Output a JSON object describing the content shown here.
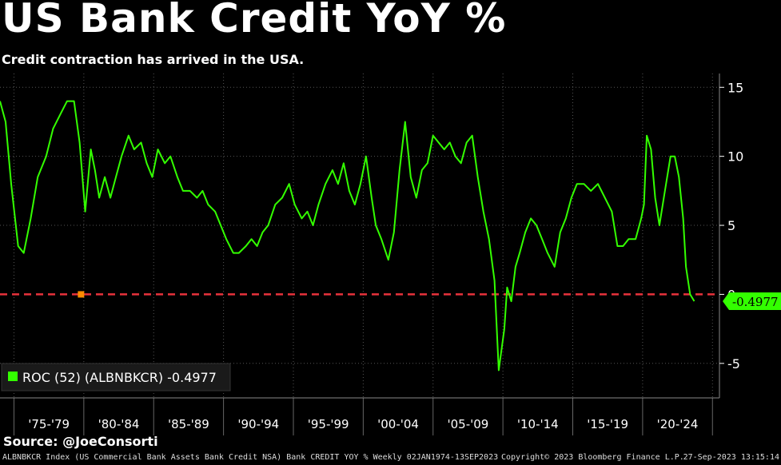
{
  "header": {
    "title": "US Bank Credit YoY %",
    "subtitle": "Credit contraction has arrived in the USA."
  },
  "footer": {
    "source": "Source: @JoeConsorti",
    "description": "ALBNBKCR Index (US Commercial Bank Assets Bank Credit NSA) Bank CREDIT YOY % Weekly 02JAN1974-13SEP2023",
    "copyright": "Copyright© 2023 Bloomberg Finance L.P.",
    "timestamp": "27-Sep-2023 13:15:14"
  },
  "colors": {
    "background": "#000000",
    "line": "#33ff00",
    "zero_line": "#e8323c",
    "grid": "#555555",
    "last_label_bg": "#33ff00"
  },
  "chart_data": {
    "type": "line",
    "title": "US Bank Credit YoY %",
    "subtitle": "Credit contraction has arrived in the USA.",
    "y_axis_position": "right",
    "ylim": [
      -7.5,
      16
    ],
    "yticks": [
      15,
      10,
      5,
      0,
      -5
    ],
    "xlim": [
      1974.0,
      2025.5
    ],
    "x_periods": [
      "'75-'79",
      "'80-'84",
      "'85-'89",
      "'90-'94",
      "'95-'99",
      "'00-'04",
      "'05-'09",
      "'10-'14",
      "'15-'19",
      "'20-'24"
    ],
    "grid": true,
    "legend": {
      "position": "bottom-left",
      "label": "ROC (52) (ALBNBKCR) -0.4977"
    },
    "last_value": -0.4977,
    "last_value_label": "-0.4977",
    "reference_line": 0,
    "series": [
      {
        "name": "ROC (52) (ALBNBKCR)",
        "x": [
          1974.0,
          1974.4,
          1974.8,
          1975.3,
          1975.7,
          1976.2,
          1976.7,
          1977.3,
          1977.8,
          1978.3,
          1978.8,
          1979.3,
          1979.7,
          1980.1,
          1980.5,
          1980.8,
          1981.1,
          1981.5,
          1981.9,
          1982.3,
          1982.7,
          1983.2,
          1983.6,
          1984.1,
          1984.5,
          1984.9,
          1985.3,
          1985.8,
          1986.2,
          1986.7,
          1987.1,
          1987.6,
          1988.1,
          1988.5,
          1988.9,
          1989.4,
          1989.8,
          1990.2,
          1990.7,
          1991.1,
          1991.6,
          1992.0,
          1992.4,
          1992.8,
          1993.2,
          1993.7,
          1994.2,
          1994.7,
          1995.1,
          1995.6,
          1996.0,
          1996.4,
          1996.8,
          1997.3,
          1997.8,
          1998.2,
          1998.6,
          1999.0,
          1999.4,
          1999.8,
          2000.2,
          2000.6,
          2000.9,
          2001.3,
          2001.8,
          2002.2,
          2002.6,
          2003.0,
          2003.4,
          2003.8,
          2004.2,
          2004.6,
          2005.0,
          2005.4,
          2005.8,
          2006.2,
          2006.6,
          2007.0,
          2007.4,
          2007.8,
          2008.2,
          2008.6,
          2009.0,
          2009.4,
          2009.7,
          2009.9,
          2010.1,
          2010.3,
          2010.6,
          2010.9,
          2011.2,
          2011.6,
          2012.0,
          2012.4,
          2012.8,
          2013.2,
          2013.7,
          2014.1,
          2014.5,
          2014.9,
          2015.3,
          2015.8,
          2016.3,
          2016.8,
          2017.3,
          2017.8,
          2018.2,
          2018.6,
          2019.0,
          2019.5,
          2019.9,
          2020.1,
          2020.3,
          2020.6,
          2020.9,
          2021.2,
          2021.6,
          2022.0,
          2022.3,
          2022.6,
          2022.9,
          2023.1,
          2023.4,
          2023.7
        ],
        "y": [
          14.0,
          12.5,
          8.0,
          3.5,
          3.0,
          5.5,
          8.5,
          10.0,
          12.0,
          13.0,
          14.0,
          14.0,
          11.0,
          6.0,
          10.5,
          9.0,
          7.0,
          8.5,
          7.0,
          8.5,
          10.0,
          11.5,
          10.5,
          11.0,
          9.5,
          8.5,
          10.5,
          9.5,
          10.0,
          8.5,
          7.5,
          7.5,
          7.0,
          7.5,
          6.5,
          6.0,
          5.0,
          4.0,
          3.0,
          3.0,
          3.5,
          4.0,
          3.5,
          4.5,
          5.0,
          6.5,
          7.0,
          8.0,
          6.5,
          5.5,
          6.0,
          5.0,
          6.5,
          8.0,
          9.0,
          8.0,
          9.5,
          7.5,
          6.5,
          8.0,
          10.0,
          7.0,
          5.0,
          4.0,
          2.5,
          4.5,
          9.0,
          12.5,
          8.5,
          7.0,
          9.0,
          9.5,
          11.5,
          11.0,
          10.5,
          11.0,
          10.0,
          9.5,
          11.0,
          11.5,
          8.5,
          6.0,
          4.0,
          1.0,
          -5.5,
          -4.0,
          -2.5,
          0.5,
          -0.5,
          2.0,
          3.0,
          4.5,
          5.5,
          5.0,
          4.0,
          3.0,
          2.0,
          4.5,
          5.5,
          7.0,
          8.0,
          8.0,
          7.5,
          8.0,
          7.0,
          6.0,
          3.5,
          3.5,
          4.0,
          4.0,
          5.5,
          6.5,
          11.5,
          10.5,
          7.0,
          5.0,
          7.5,
          10.0,
          10.0,
          8.5,
          5.5,
          2.0,
          0.0,
          -0.4977
        ]
      }
    ]
  }
}
